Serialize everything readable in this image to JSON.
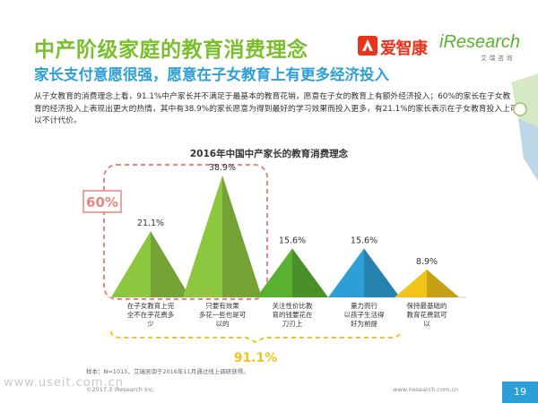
{
  "header": {
    "title": "中产阶级家庭的教育消费理念",
    "subtitle": "家长支付意愿很强，愿意在子女教育上有更多经济投入",
    "brand_left": "爱智康",
    "brand_right": "iResearch",
    "brand_right_sub": "艾瑞咨询"
  },
  "description": "从子女教育的消费理念上看，91.1%中产家长并不满足于最基本的教育花销，愿意在子女的教育上有额外经济投入；60%的家长在子女教育的经济投入上表现出更大的热情，其中有38.9%的家长愿意为得到最好的学习效果而投入更多，有21.1%的家长表示在子女教育投入上可以不计代价。",
  "chart_data": {
    "type": "bar",
    "title": "2016年中国中产家长的教育消费理念",
    "categories": [
      "在子女教育上完全不在乎花费多少",
      "只要有效果多花一些也是可以的",
      "关注性价比教育的钱要花在刀刃上",
      "量力而行以孩子生活得好为前提",
      "保持最基础的教育花费就可以"
    ],
    "category_lines": [
      [
        "在子女教育上完",
        "全不在乎花费多",
        "少"
      ],
      [
        "只要有效果",
        "多花一些也是可",
        "以的"
      ],
      [
        "关注性价比教",
        "育的钱要花在",
        "刀刃上"
      ],
      [
        "量力而行",
        "以孩子生活得",
        "好为前提"
      ],
      [
        "保持最基础的",
        "教育花费就可",
        "以"
      ]
    ],
    "values": [
      21.1,
      38.9,
      15.6,
      15.6,
      8.9
    ],
    "value_labels": [
      "21.1%",
      "38.9%",
      "15.6%",
      "15.6%",
      "8.9%"
    ],
    "ylim": [
      0,
      40
    ],
    "colors": [
      "#8dc63f",
      "#8dc63f",
      "#5ab031",
      "#2e9fd6",
      "#f2c318"
    ],
    "callouts": [
      {
        "label": "60%",
        "covers": [
          0,
          1
        ],
        "color": "#e8867c"
      },
      {
        "label": "91.1%",
        "covers": [
          0,
          3
        ],
        "color": "#f2c318"
      }
    ]
  },
  "footer": {
    "source": "样本：N=1015，艾瑞咨询于2016年11月通过线上调研获得。",
    "copyright": "©2017.3 iResearch Inc.",
    "website": "www.iresearch.com.cn",
    "page": "19",
    "watermark": "www.useit.com.cn"
  }
}
